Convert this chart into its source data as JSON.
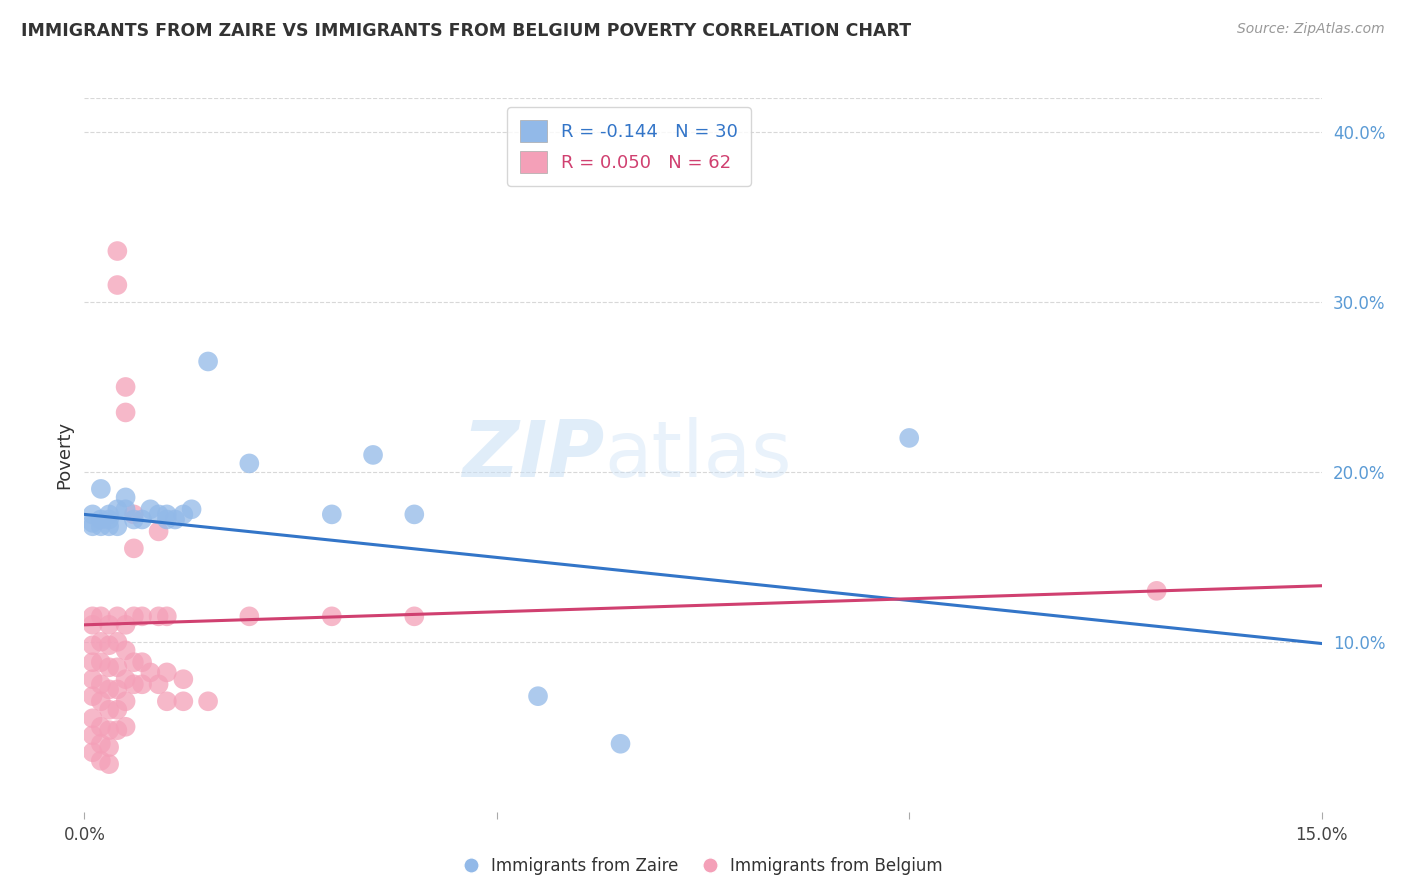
{
  "title": "IMMIGRANTS FROM ZAIRE VS IMMIGRANTS FROM BELGIUM POVERTY CORRELATION CHART",
  "source": "Source: ZipAtlas.com",
  "ylabel": "Poverty",
  "xlim": [
    0.0,
    0.15
  ],
  "ylim": [
    0.0,
    0.42
  ],
  "xticks": [
    0.0,
    0.05,
    0.1,
    0.15
  ],
  "xtick_labels": [
    "0.0%",
    "",
    "",
    "15.0%"
  ],
  "ytick_labels_right": [
    "10.0%",
    "20.0%",
    "30.0%",
    "40.0%"
  ],
  "yticks_right": [
    0.1,
    0.2,
    0.3,
    0.4
  ],
  "grid_yticks": [
    0.1,
    0.2,
    0.3,
    0.4
  ],
  "bg_color": "#ffffff",
  "grid_color": "#d8d8d8",
  "right_tick_color": "#5b9bd5",
  "legend_R_zaire": "-0.144",
  "legend_N_zaire": "30",
  "legend_R_belgium": "0.050",
  "legend_N_belgium": "62",
  "zaire_color": "#92b9e8",
  "belgium_color": "#f4a0b8",
  "zaire_line_color": "#3375c8",
  "belgium_line_color": "#d04070",
  "watermark": "ZIPatlas",
  "zaire_scatter": [
    [
      0.001,
      0.17
    ],
    [
      0.001,
      0.168
    ],
    [
      0.001,
      0.175
    ],
    [
      0.002,
      0.172
    ],
    [
      0.002,
      0.19
    ],
    [
      0.002,
      0.168
    ],
    [
      0.003,
      0.175
    ],
    [
      0.003,
      0.168
    ],
    [
      0.003,
      0.172
    ],
    [
      0.004,
      0.178
    ],
    [
      0.004,
      0.168
    ],
    [
      0.005,
      0.178
    ],
    [
      0.005,
      0.185
    ],
    [
      0.006,
      0.172
    ],
    [
      0.007,
      0.172
    ],
    [
      0.008,
      0.178
    ],
    [
      0.009,
      0.175
    ],
    [
      0.01,
      0.175
    ],
    [
      0.01,
      0.172
    ],
    [
      0.011,
      0.172
    ],
    [
      0.012,
      0.175
    ],
    [
      0.013,
      0.178
    ],
    [
      0.015,
      0.265
    ],
    [
      0.02,
      0.205
    ],
    [
      0.03,
      0.175
    ],
    [
      0.035,
      0.21
    ],
    [
      0.04,
      0.175
    ],
    [
      0.055,
      0.068
    ],
    [
      0.065,
      0.04
    ],
    [
      0.1,
      0.22
    ]
  ],
  "belgium_scatter": [
    [
      0.001,
      0.115
    ],
    [
      0.001,
      0.11
    ],
    [
      0.001,
      0.098
    ],
    [
      0.001,
      0.088
    ],
    [
      0.001,
      0.078
    ],
    [
      0.001,
      0.068
    ],
    [
      0.001,
      0.055
    ],
    [
      0.001,
      0.045
    ],
    [
      0.001,
      0.035
    ],
    [
      0.002,
      0.115
    ],
    [
      0.002,
      0.1
    ],
    [
      0.002,
      0.088
    ],
    [
      0.002,
      0.075
    ],
    [
      0.002,
      0.065
    ],
    [
      0.002,
      0.05
    ],
    [
      0.002,
      0.04
    ],
    [
      0.002,
      0.03
    ],
    [
      0.003,
      0.11
    ],
    [
      0.003,
      0.098
    ],
    [
      0.003,
      0.085
    ],
    [
      0.003,
      0.072
    ],
    [
      0.003,
      0.06
    ],
    [
      0.003,
      0.048
    ],
    [
      0.003,
      0.038
    ],
    [
      0.003,
      0.028
    ],
    [
      0.004,
      0.33
    ],
    [
      0.004,
      0.31
    ],
    [
      0.004,
      0.115
    ],
    [
      0.004,
      0.1
    ],
    [
      0.004,
      0.085
    ],
    [
      0.004,
      0.072
    ],
    [
      0.004,
      0.06
    ],
    [
      0.004,
      0.048
    ],
    [
      0.005,
      0.25
    ],
    [
      0.005,
      0.235
    ],
    [
      0.005,
      0.11
    ],
    [
      0.005,
      0.095
    ],
    [
      0.005,
      0.078
    ],
    [
      0.005,
      0.065
    ],
    [
      0.005,
      0.05
    ],
    [
      0.006,
      0.175
    ],
    [
      0.006,
      0.155
    ],
    [
      0.006,
      0.115
    ],
    [
      0.006,
      0.088
    ],
    [
      0.006,
      0.075
    ],
    [
      0.007,
      0.115
    ],
    [
      0.007,
      0.088
    ],
    [
      0.007,
      0.075
    ],
    [
      0.008,
      0.082
    ],
    [
      0.009,
      0.165
    ],
    [
      0.009,
      0.115
    ],
    [
      0.009,
      0.075
    ],
    [
      0.01,
      0.115
    ],
    [
      0.01,
      0.082
    ],
    [
      0.01,
      0.065
    ],
    [
      0.012,
      0.078
    ],
    [
      0.012,
      0.065
    ],
    [
      0.015,
      0.065
    ],
    [
      0.02,
      0.115
    ],
    [
      0.03,
      0.115
    ],
    [
      0.04,
      0.115
    ],
    [
      0.13,
      0.13
    ]
  ],
  "zaire_trendline": [
    [
      0.0,
      0.175
    ],
    [
      0.15,
      0.099
    ]
  ],
  "belgium_trendline": [
    [
      0.0,
      0.11
    ],
    [
      0.15,
      0.133
    ]
  ]
}
